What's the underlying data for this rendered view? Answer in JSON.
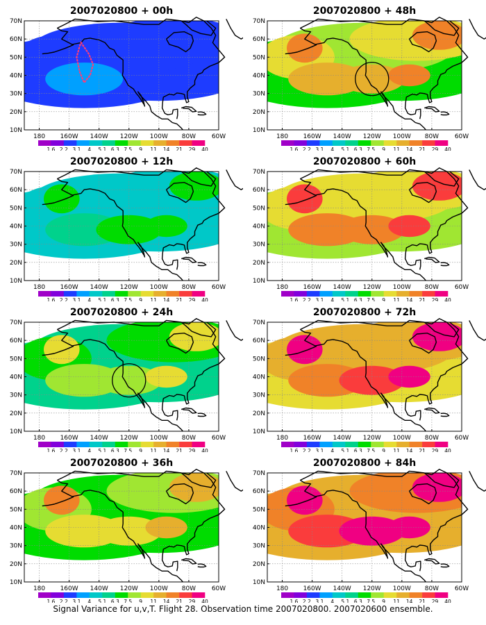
{
  "caption": "Signal Variance for u,v,T. Flight 28. Observation time 2007020800. 2007020600 ensemble.",
  "lat_labels": [
    "10N",
    "20N",
    "30N",
    "40N",
    "50N",
    "60N",
    "70N"
  ],
  "lon_labels": [
    "180",
    "160W",
    "140W",
    "120W",
    "100W",
    "80W",
    "60W"
  ],
  "colorbar": {
    "colors": [
      "#a000c8",
      "#8200dc",
      "#1e3cff",
      "#00a0ff",
      "#00c8c8",
      "#00d28c",
      "#00dc00",
      "#a0e632",
      "#e6dc32",
      "#e6af2d",
      "#f08228",
      "#fa3c3c",
      "#f00082"
    ],
    "labels": [
      "1.6",
      "2.2",
      "3.1",
      "4",
      "5.1",
      "6.3",
      "7.5",
      "9",
      "11",
      "14",
      "21",
      "29",
      "40"
    ]
  },
  "panels": [
    {
      "title": "2007020800 + 00h",
      "intensity": 0.2,
      "circle": false,
      "track": true
    },
    {
      "title": "2007020800 + 12h",
      "intensity": 0.4,
      "circle": false,
      "track": false
    },
    {
      "title": "2007020800 + 24h",
      "intensity": 0.55,
      "circle": true,
      "track": false
    },
    {
      "title": "2007020800 + 36h",
      "intensity": 0.65,
      "circle": false,
      "track": false
    },
    {
      "title": "2007020800 + 48h",
      "intensity": 0.72,
      "circle": true,
      "track": false
    },
    {
      "title": "2007020800 + 60h",
      "intensity": 0.8,
      "circle": false,
      "track": false
    },
    {
      "title": "2007020800 + 72h",
      "intensity": 0.88,
      "circle": false,
      "track": false
    },
    {
      "title": "2007020800 + 84h",
      "intensity": 0.95,
      "circle": false,
      "track": false
    }
  ]
}
